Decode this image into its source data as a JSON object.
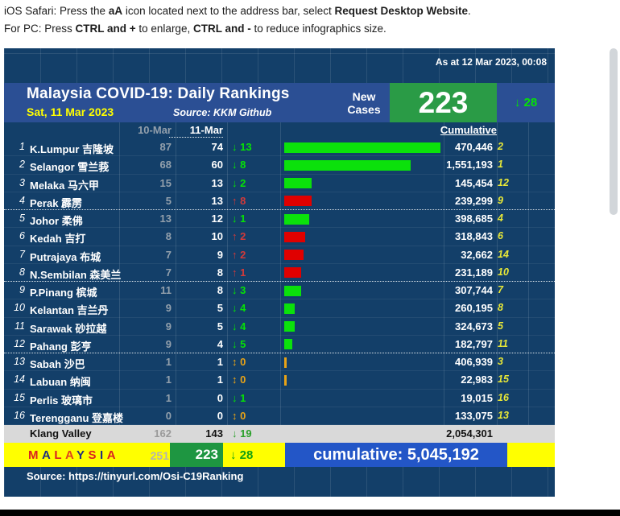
{
  "instructions": {
    "line1": [
      {
        "t": "iOS Safari: Press the "
      },
      {
        "t": "aA",
        "b": 1
      },
      {
        "t": " icon located next to the address bar, select "
      },
      {
        "t": "Request Desktop Website",
        "b": 1
      },
      {
        "t": "."
      }
    ],
    "line2": [
      {
        "t": "For PC: Press "
      },
      {
        "t": "CTRL and +",
        "b": 1
      },
      {
        "t": " to enlarge, "
      },
      {
        "t": "CTRL and -",
        "b": 1
      },
      {
        "t": " to reduce infographics size."
      }
    ]
  },
  "header": {
    "as_at": "As at 12 Mar 2023, 00:08",
    "title": "Malaysia COVID-19: Daily Rankings",
    "date": "Sat, 11 Mar 2023",
    "source": "Source: KKM Github",
    "new_cases_label": "New Cases",
    "new_cases_value": "223",
    "new_cases_arrow": "↓",
    "new_cases_change": "28"
  },
  "table": {
    "col_prev": "10-Mar",
    "col_curr": "11-Mar",
    "col_cumulative": "Cumulative",
    "rows": [
      {
        "rank": "1",
        "name": "K.Lumpur 吉隆坡",
        "prev": "87",
        "curr": "74",
        "dir": "down",
        "chg": "13",
        "bar": 74,
        "cum": "470,446",
        "crank": "2"
      },
      {
        "rank": "2",
        "name": "Selangor 雪兰莪",
        "prev": "68",
        "curr": "60",
        "dir": "down",
        "chg": "8",
        "bar": 60,
        "cum": "1,551,193",
        "crank": "1"
      },
      {
        "rank": "3",
        "name": "Melaka 马六甲",
        "prev": "15",
        "curr": "13",
        "dir": "down",
        "chg": "2",
        "bar": 13,
        "cum": "145,454",
        "crank": "12"
      },
      {
        "rank": "4",
        "name": "Perak 霹雳",
        "prev": "5",
        "curr": "13",
        "dir": "up",
        "chg": "8",
        "bar": 13,
        "cum": "239,299",
        "crank": "9"
      },
      {
        "rank": "5",
        "name": "Johor 柔佛",
        "prev": "13",
        "curr": "12",
        "dir": "down",
        "chg": "1",
        "bar": 12,
        "cum": "398,685",
        "crank": "4"
      },
      {
        "rank": "6",
        "name": "Kedah 吉打",
        "prev": "8",
        "curr": "10",
        "dir": "up",
        "chg": "2",
        "bar": 10,
        "cum": "318,843",
        "crank": "6"
      },
      {
        "rank": "7",
        "name": "Putrajaya 布城",
        "prev": "7",
        "curr": "9",
        "dir": "up",
        "chg": "2",
        "bar": 9,
        "cum": "32,662",
        "crank": "14"
      },
      {
        "rank": "8",
        "name": "N.Sembilan 森美兰",
        "prev": "7",
        "curr": "8",
        "dir": "up",
        "chg": "1",
        "bar": 8,
        "cum": "231,189",
        "crank": "10"
      },
      {
        "rank": "9",
        "name": "P.Pinang 槟城",
        "prev": "11",
        "curr": "8",
        "dir": "down",
        "chg": "3",
        "bar": 8,
        "cum": "307,744",
        "crank": "7"
      },
      {
        "rank": "10",
        "name": "Kelantan 吉兰丹",
        "prev": "9",
        "curr": "5",
        "dir": "down",
        "chg": "4",
        "bar": 5,
        "cum": "260,195",
        "crank": "8"
      },
      {
        "rank": "11",
        "name": "Sarawak 砂拉越",
        "prev": "9",
        "curr": "5",
        "dir": "down",
        "chg": "4",
        "bar": 5,
        "cum": "324,673",
        "crank": "5"
      },
      {
        "rank": "12",
        "name": "Pahang 彭亨",
        "prev": "9",
        "curr": "4",
        "dir": "down",
        "chg": "5",
        "bar": 4,
        "cum": "182,797",
        "crank": "11"
      },
      {
        "rank": "13",
        "name": "Sabah 沙巴",
        "prev": "1",
        "curr": "1",
        "dir": "same",
        "chg": "0",
        "bar": 1,
        "cum": "406,939",
        "crank": "3"
      },
      {
        "rank": "14",
        "name": "Labuan 纳闽",
        "prev": "1",
        "curr": "1",
        "dir": "same",
        "chg": "0",
        "bar": 1,
        "cum": "22,983",
        "crank": "15"
      },
      {
        "rank": "15",
        "name": "Perlis 玻璃市",
        "prev": "1",
        "curr": "0",
        "dir": "down",
        "chg": "1",
        "bar": 0,
        "cum": "19,015",
        "crank": "16"
      },
      {
        "rank": "16",
        "name": "Terengganu 登嘉楼",
        "prev": "0",
        "curr": "0",
        "dir": "same",
        "chg": "0",
        "bar": 0,
        "cum": "133,075",
        "crank": "13"
      }
    ]
  },
  "summary": {
    "klang": {
      "name": "Klang Valley",
      "prev": "162",
      "curr": "143",
      "arrow": "↓",
      "chg": "19",
      "cum": "2,054,301"
    },
    "malaysia": {
      "letters": [
        {
          "ch": "M",
          "c": "#d92121"
        },
        {
          "ch": "A",
          "c": "#20307f"
        },
        {
          "ch": "L",
          "c": "#d92121"
        },
        {
          "ch": "A",
          "c": "#e0431c"
        },
        {
          "ch": "Y",
          "c": "#20307f"
        },
        {
          "ch": "S",
          "c": "#d92121"
        },
        {
          "ch": "I",
          "c": "#20307f"
        },
        {
          "ch": "A",
          "c": "#d92121"
        }
      ],
      "prev": "251",
      "curr": "223",
      "arrow": "↓",
      "chg": "28",
      "cumulative_label": "cumulative: 5,045,192"
    }
  },
  "footer": {
    "source": "Source: https://tinyurl.com/Osi-C19Ranking"
  },
  "colors": {
    "sheet_bg": "#133f69",
    "band_blue": "#2b4f94",
    "green_box": "#2a9b46",
    "green_box_dark": "#1e9641",
    "blue_box": "#2356c7",
    "bright_green": "#06e206",
    "bar_green": "#0be10b",
    "bar_red": "#e00000",
    "bar_orange": "#e8a317",
    "up_red": "#d23a3a",
    "same_orange": "#e8a317",
    "yellow": "#ffff00",
    "gray_row": "#d9d9d9",
    "prev_gray": "#93a0ac",
    "rank_yellow": "#e8e837"
  }
}
